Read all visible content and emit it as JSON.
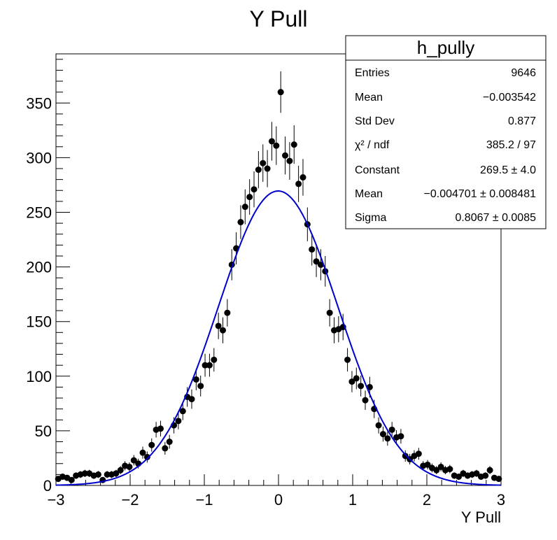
{
  "chart_data": {
    "type": "scatter",
    "title": "Y Pull",
    "xlabel": "Y Pull",
    "ylabel": "",
    "xlim": [
      -3,
      3
    ],
    "ylim": [
      0,
      395
    ],
    "x_ticks": [
      -3,
      -2,
      -1,
      0,
      1,
      2,
      3
    ],
    "x_tick_labels": [
      "−3",
      "−2",
      "−1",
      "0",
      "1",
      "2",
      "3"
    ],
    "y_ticks": [
      0,
      50,
      100,
      150,
      200,
      250,
      300,
      350
    ],
    "y_tick_labels": [
      "0",
      "50",
      "100",
      "150",
      "200",
      "250",
      "300",
      "350"
    ],
    "grid": false,
    "legend": "none",
    "colors": {
      "markers": "#000000",
      "fit": "#0000cc",
      "frame": "#000000"
    },
    "series": [
      {
        "kind": "histogram-points-with-errors",
        "x": [
          -2.97,
          -2.91,
          -2.85,
          -2.79,
          -2.73,
          -2.67,
          -2.61,
          -2.55,
          -2.49,
          -2.43,
          -2.37,
          -2.31,
          -2.25,
          -2.19,
          -2.13,
          -2.07,
          -2.01,
          -1.95,
          -1.89,
          -1.83,
          -1.77,
          -1.71,
          -1.65,
          -1.59,
          -1.53,
          -1.47,
          -1.41,
          -1.35,
          -1.29,
          -1.23,
          -1.17,
          -1.11,
          -1.05,
          -0.99,
          -0.93,
          -0.87,
          -0.81,
          -0.75,
          -0.69,
          -0.63,
          -0.57,
          -0.51,
          -0.45,
          -0.39,
          -0.33,
          -0.27,
          -0.21,
          -0.15,
          -0.09,
          -0.03,
          0.03,
          0.09,
          0.15,
          0.21,
          0.27,
          0.33,
          0.39,
          0.45,
          0.51,
          0.57,
          0.63,
          0.69,
          0.75,
          0.81,
          0.87,
          0.93,
          0.99,
          1.05,
          1.11,
          1.17,
          1.23,
          1.29,
          1.35,
          1.41,
          1.47,
          1.53,
          1.59,
          1.65,
          1.71,
          1.77,
          1.83,
          1.89,
          1.95,
          2.01,
          2.07,
          2.13,
          2.19,
          2.25,
          2.31,
          2.37,
          2.43,
          2.49,
          2.55,
          2.61,
          2.67,
          2.73,
          2.79,
          2.85,
          2.91,
          2.97
        ],
        "y": [
          6,
          8,
          7,
          5,
          9,
          10,
          11,
          11,
          9,
          10,
          5,
          10,
          10,
          11,
          14,
          18,
          17,
          23,
          20,
          30,
          26,
          37,
          51,
          52,
          34,
          40,
          55,
          59,
          68,
          81,
          79,
          97,
          91,
          110,
          110,
          115,
          146,
          142,
          158,
          202,
          217,
          241,
          255,
          264,
          271,
          289,
          295,
          290,
          315,
          311,
          360,
          302,
          297,
          312,
          276,
          282,
          239,
          216,
          205,
          202,
          196,
          158,
          142,
          143,
          145,
          115,
          95,
          98,
          91,
          78,
          90,
          70,
          55,
          47,
          43,
          51,
          44,
          45,
          27,
          24,
          27,
          29,
          18,
          19,
          16,
          14,
          17,
          14,
          15,
          9,
          8,
          11,
          9,
          10,
          11,
          8,
          9,
          14,
          7,
          6
        ]
      },
      {
        "kind": "gaussian-fit",
        "constant": 269.5,
        "mean": -0.004701,
        "sigma": 0.8067
      }
    ],
    "stats_box": {
      "title": "h_pully",
      "rows": [
        {
          "label": "Entries",
          "value": "9646"
        },
        {
          "label": "Mean",
          "value": "−0.003542"
        },
        {
          "label": "Std Dev",
          "value": "0.877"
        },
        {
          "label": "χ² / ndf",
          "value": "385.2 / 97"
        },
        {
          "label": "Constant",
          "value": "269.5 ± 4.0"
        },
        {
          "label": "Mean",
          "value": "−0.004701 ± 0.008481"
        },
        {
          "label": "Sigma",
          "value": "0.8067 ± 0.0085"
        }
      ]
    }
  }
}
